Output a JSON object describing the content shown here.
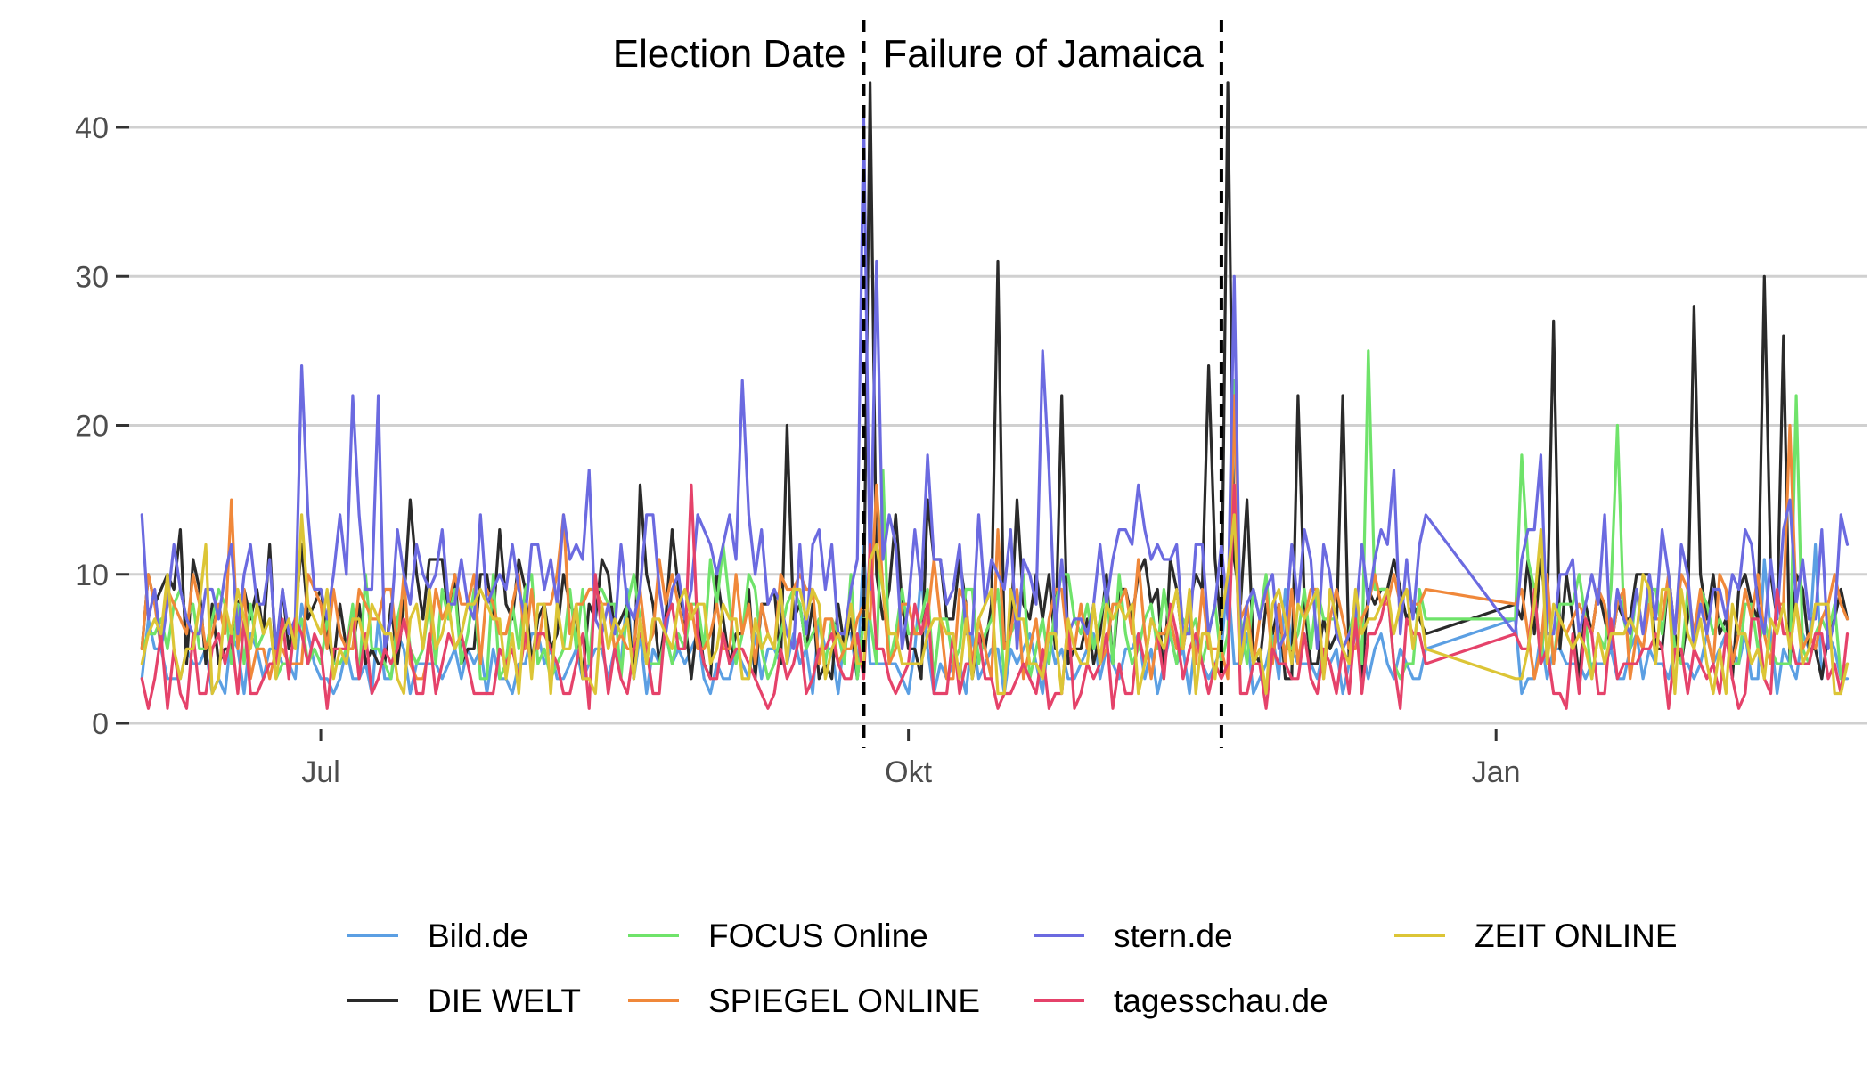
{
  "chart_data": {
    "type": "line",
    "title": "",
    "xlabel": "",
    "ylabel": "",
    "x_range": [
      "2017-06-01",
      "2018-02-28"
    ],
    "x_tick_labels": [
      {
        "date": "2017-07-01",
        "label": "Jul"
      },
      {
        "date": "2017-10-01",
        "label": "Okt"
      },
      {
        "date": "2018-01-01",
        "label": "Jan"
      }
    ],
    "ylim": [
      0,
      43
    ],
    "y_ticks": [
      0,
      10,
      20,
      30,
      40
    ],
    "grid": "horizontal",
    "legend_position": "bottom",
    "events": [
      {
        "date": "2017-09-24",
        "label": "Election Date"
      },
      {
        "date": "2017-11-19",
        "label": "Failure of Jamaica"
      }
    ],
    "series": [
      {
        "name": "Bild.de",
        "color": "#5b9fe3",
        "seed": 11,
        "base": 2,
        "amp": 4,
        "peaks": [
          [
            "2017-09-24",
            12
          ],
          [
            "2017-11-20",
            10
          ],
          [
            "2018-02-20",
            12
          ]
        ]
      },
      {
        "name": "DIE WELT",
        "color": "#2a2a2a",
        "seed": 22,
        "base": 3,
        "amp": 8,
        "peaks": [
          [
            "2017-06-28",
            12
          ],
          [
            "2017-07-15",
            15
          ],
          [
            "2017-08-20",
            16
          ],
          [
            "2017-09-12",
            20
          ],
          [
            "2017-09-25",
            43
          ],
          [
            "2017-10-15",
            31
          ],
          [
            "2017-10-25",
            22
          ],
          [
            "2017-11-17",
            24
          ],
          [
            "2017-11-20",
            43
          ],
          [
            "2017-12-01",
            22
          ],
          [
            "2017-12-08",
            22
          ],
          [
            "2018-01-10",
            27
          ],
          [
            "2018-02-01",
            28
          ],
          [
            "2018-02-12",
            30
          ],
          [
            "2018-02-15",
            26
          ]
        ]
      },
      {
        "name": "FOCUS Online",
        "color": "#6fe36a",
        "seed": 33,
        "base": 3,
        "amp": 7,
        "peaks": [
          [
            "2017-09-27",
            17
          ],
          [
            "2017-11-21",
            23
          ],
          [
            "2017-12-12",
            25
          ],
          [
            "2018-01-05",
            18
          ],
          [
            "2018-01-20",
            20
          ],
          [
            "2018-02-17",
            22
          ]
        ]
      },
      {
        "name": "SPIEGEL ONLINE",
        "color": "#f0883a",
        "seed": 44,
        "base": 3,
        "amp": 7,
        "peaks": [
          [
            "2017-06-17",
            15
          ],
          [
            "2017-09-26",
            16
          ],
          [
            "2017-11-21",
            22
          ],
          [
            "2018-02-16",
            20
          ]
        ]
      },
      {
        "name": "stern.de",
        "color": "#6b6ae0",
        "seed": 55,
        "base": 5,
        "amp": 9,
        "peaks": [
          [
            "2017-06-03",
            14
          ],
          [
            "2017-06-28",
            24
          ],
          [
            "2017-07-06",
            22
          ],
          [
            "2017-07-10",
            22
          ],
          [
            "2017-09-05",
            23
          ],
          [
            "2017-09-24",
            41
          ],
          [
            "2017-09-26",
            31
          ],
          [
            "2017-10-22",
            25
          ],
          [
            "2017-11-21",
            30
          ],
          [
            "2018-01-08",
            18
          ],
          [
            "2018-02-16",
            15
          ]
        ]
      },
      {
        "name": "tagesschau.de",
        "color": "#e5426a",
        "seed": 66,
        "base": 1,
        "amp": 6,
        "peaks": [
          [
            "2017-08-28",
            16
          ],
          [
            "2017-09-25",
            12
          ],
          [
            "2017-11-21",
            16
          ],
          [
            "2018-02-14",
            9
          ]
        ]
      },
      {
        "name": "ZEIT ONLINE",
        "color": "#dcc536",
        "seed": 77,
        "base": 2,
        "amp": 7,
        "peaks": [
          [
            "2017-06-28",
            14
          ],
          [
            "2017-09-26",
            12
          ],
          [
            "2017-11-21",
            14
          ]
        ]
      }
    ],
    "series_dates": {
      "start": "2017-06-03",
      "end": "2018-02-25",
      "gap_start": "2017-12-21",
      "gap_end": "2018-01-04"
    }
  }
}
